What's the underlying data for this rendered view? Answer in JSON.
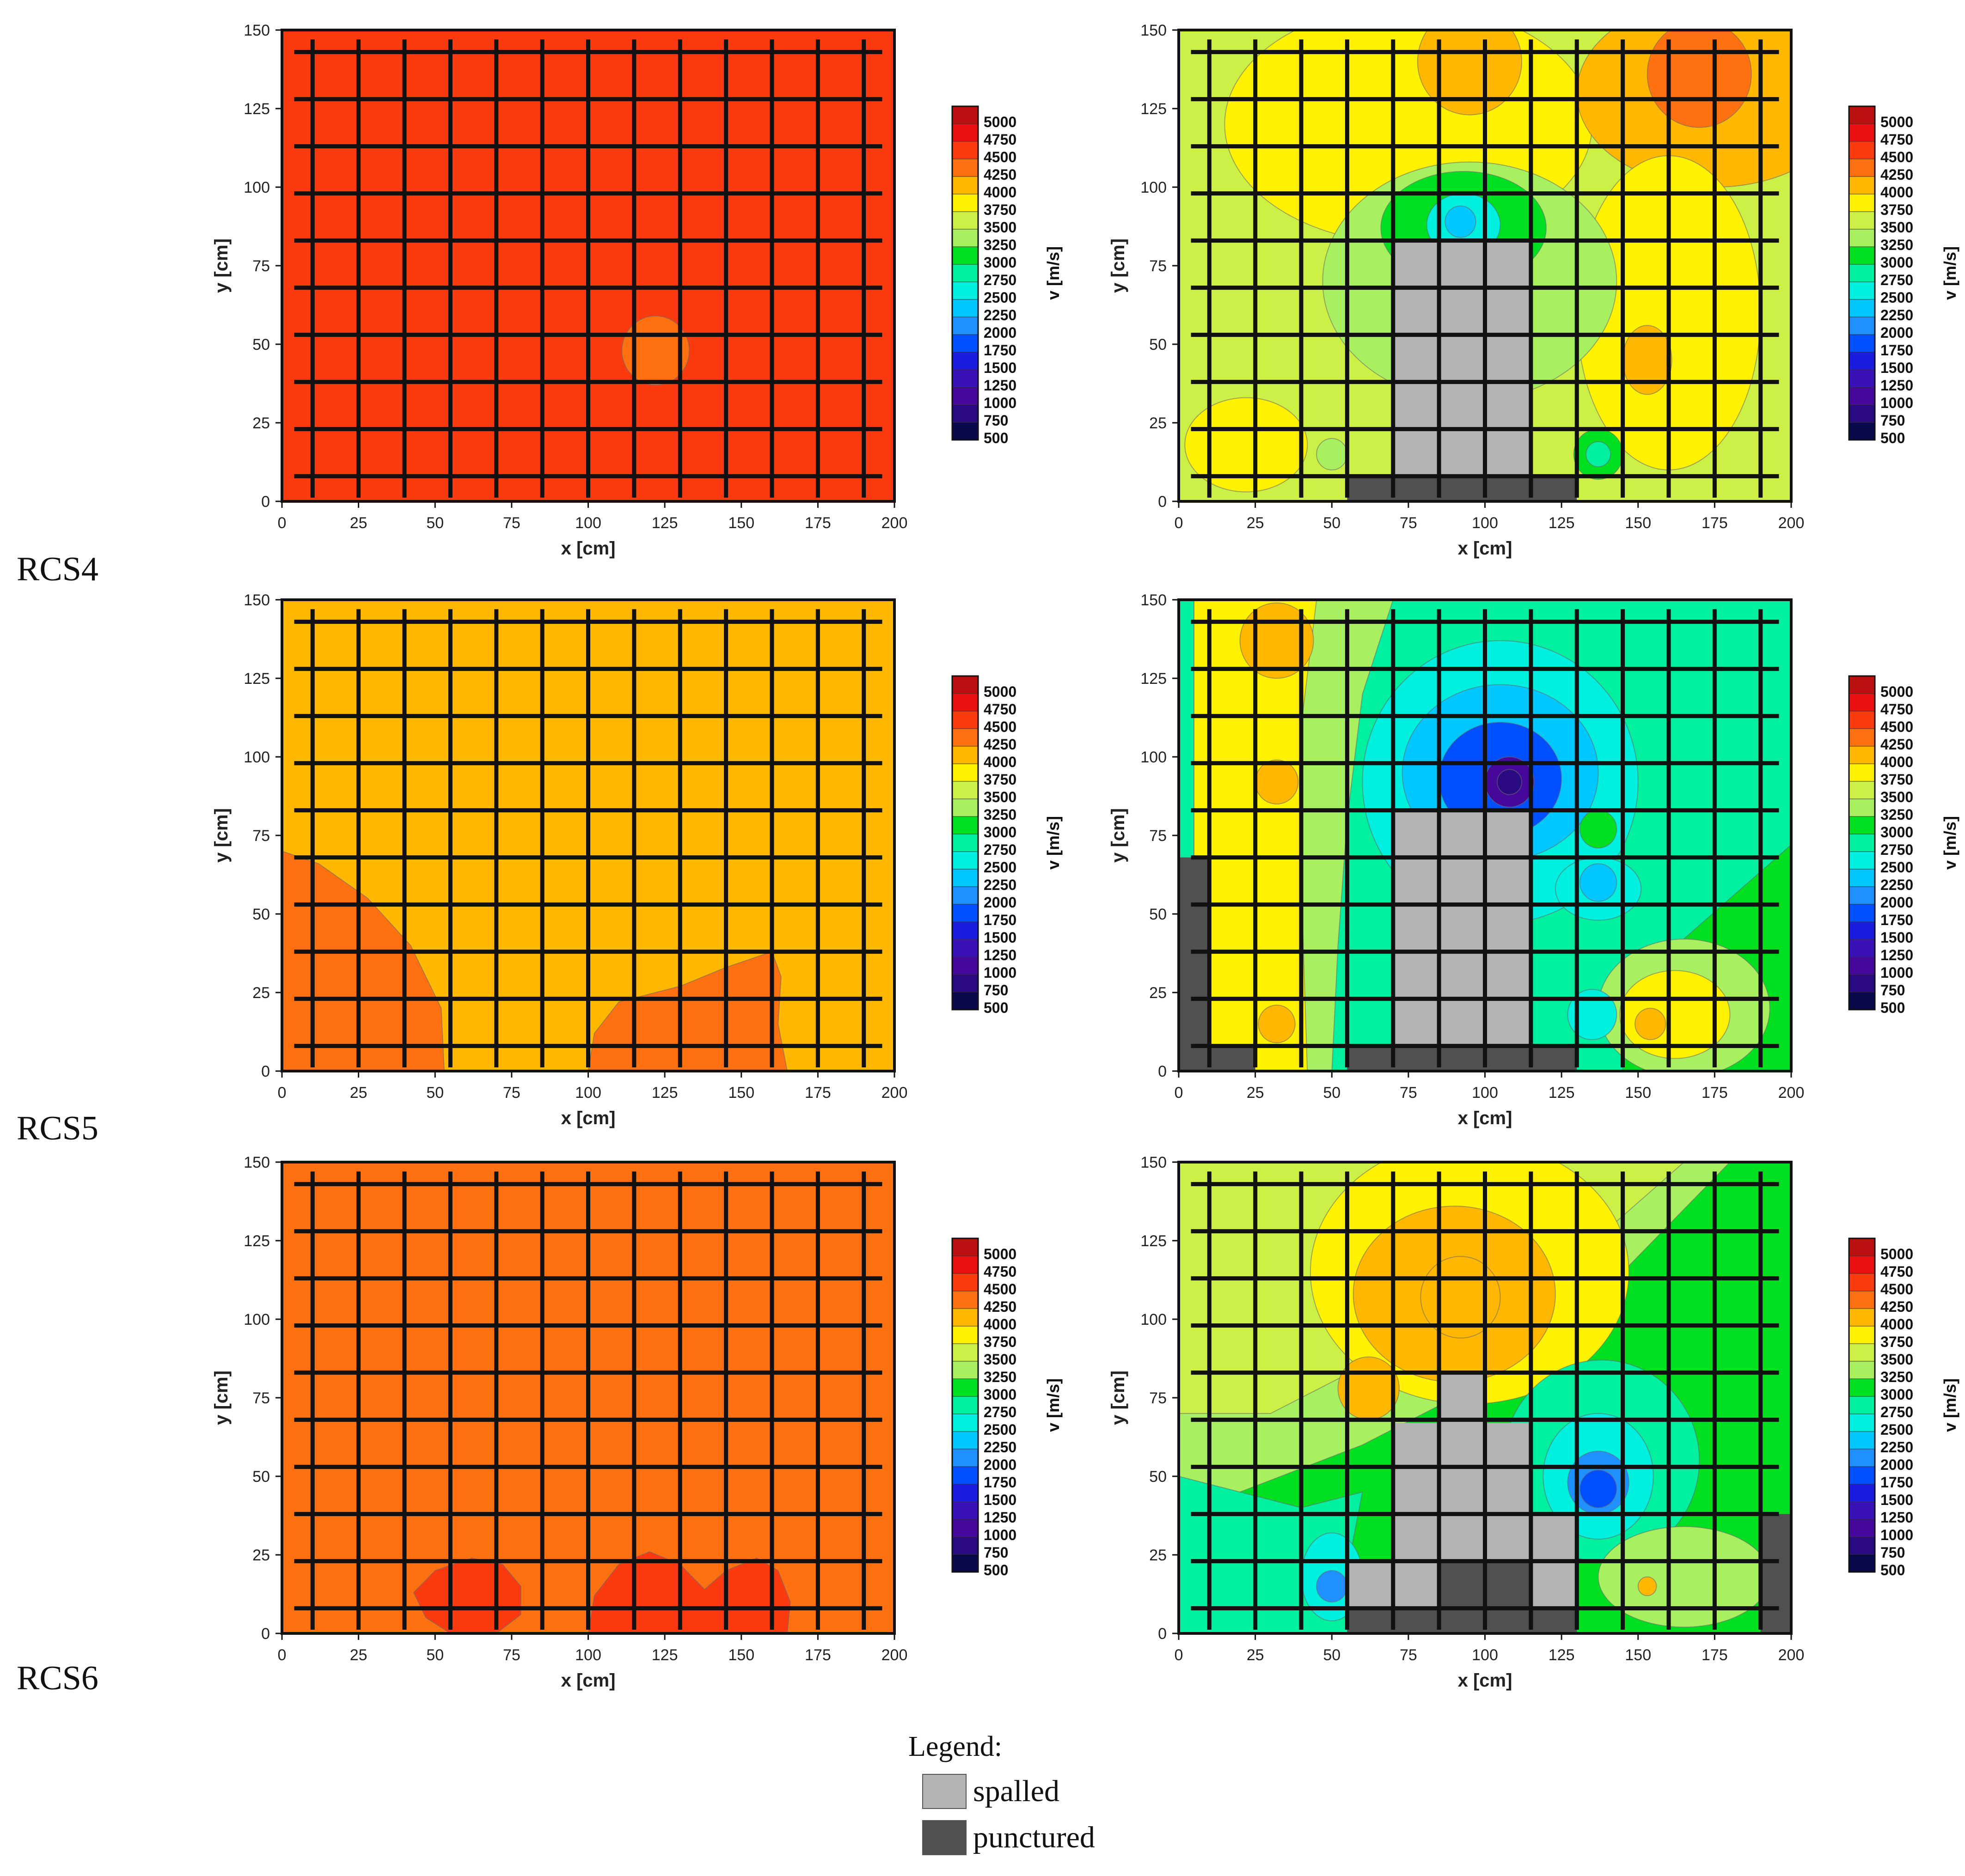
{
  "row_labels": [
    "RCS4",
    "RCS5",
    "RCS6"
  ],
  "legend": {
    "title": "Legend:",
    "items": [
      {
        "label": "spalled",
        "color": "#b4b4b4"
      },
      {
        "label": "punctured",
        "color": "#505050"
      }
    ]
  },
  "colors": {
    "spalled": "#b4b4b4",
    "punctured": "#505050",
    "grid": "#111111"
  },
  "chart_data": [
    {
      "type": "heatmap",
      "specimen": "RCS4",
      "state": "before",
      "xlabel": "x [cm]",
      "ylabel": "y [cm]",
      "xlim": [
        0,
        200
      ],
      "ylim": [
        0,
        150
      ],
      "xticks": [
        "0",
        "25",
        "50",
        "75",
        "100",
        "125",
        "150",
        "175",
        "200"
      ],
      "yticks": [
        "0",
        "25",
        "50",
        "75",
        "100",
        "125",
        "150"
      ],
      "colorbar_label": "v [m/s]",
      "background_velocity": 4600,
      "features": [
        {
          "shape": "circle",
          "cx": 122,
          "cy": 48,
          "r": 11,
          "v": 4400
        }
      ],
      "spalled": [],
      "punctured": []
    },
    {
      "type": "heatmap",
      "specimen": "RCS4",
      "state": "after",
      "xlabel": "x [cm]",
      "ylabel": "y [cm]",
      "xlim": [
        0,
        200
      ],
      "ylim": [
        0,
        150
      ],
      "xticks": [
        "0",
        "25",
        "50",
        "75",
        "100",
        "125",
        "150",
        "175",
        "200"
      ],
      "yticks": [
        "0",
        "25",
        "50",
        "75",
        "100",
        "125",
        "150"
      ],
      "colorbar_label": "v [m/s]",
      "background_velocity": 3600,
      "features": [
        {
          "shape": "ellipse",
          "cx": 75,
          "cy": 120,
          "rx": 60,
          "ry": 38,
          "v": 3900
        },
        {
          "shape": "ellipse",
          "cx": 175,
          "cy": 130,
          "rx": 45,
          "ry": 30,
          "v": 4000
        },
        {
          "shape": "circle",
          "cx": 170,
          "cy": 136,
          "r": 17,
          "v": 4300
        },
        {
          "shape": "circle",
          "cx": 95,
          "cy": 140,
          "r": 17,
          "v": 4100
        },
        {
          "shape": "ellipse",
          "cx": 160,
          "cy": 60,
          "rx": 30,
          "ry": 50,
          "v": 3850
        },
        {
          "shape": "ellipse",
          "cx": 153,
          "cy": 45,
          "rx": 8,
          "ry": 11,
          "v": 4050
        },
        {
          "shape": "ellipse",
          "cx": 22,
          "cy": 18,
          "rx": 20,
          "ry": 15,
          "v": 3900
        },
        {
          "shape": "ellipse",
          "cx": 95,
          "cy": 70,
          "rx": 48,
          "ry": 38,
          "v": 3300
        },
        {
          "shape": "ellipse",
          "cx": 93,
          "cy": 87,
          "rx": 27,
          "ry": 18,
          "v": 3100
        },
        {
          "shape": "ellipse",
          "cx": 93,
          "cy": 88,
          "rx": 12,
          "ry": 10,
          "v": 2700
        },
        {
          "shape": "circle",
          "cx": 92,
          "cy": 89,
          "r": 5,
          "v": 2400
        },
        {
          "shape": "circle",
          "cx": 50,
          "cy": 15,
          "r": 5,
          "v": 3350
        },
        {
          "shape": "circle",
          "cx": 137,
          "cy": 15,
          "r": 8,
          "v": 3050
        },
        {
          "shape": "circle",
          "cx": 137,
          "cy": 15,
          "r": 4,
          "v": 2800
        }
      ],
      "spalled": [
        [
          [
            70,
            8
          ],
          [
            115,
            8
          ],
          [
            115,
            83
          ],
          [
            70,
            83
          ]
        ]
      ],
      "punctured": [
        [
          [
            55,
            0
          ],
          [
            130,
            0
          ],
          [
            130,
            8
          ],
          [
            55,
            8
          ]
        ]
      ]
    },
    {
      "type": "heatmap",
      "specimen": "RCS5",
      "state": "before",
      "xlabel": "x [cm]",
      "ylabel": "y [cm]",
      "xlim": [
        0,
        200
      ],
      "ylim": [
        0,
        150
      ],
      "xticks": [
        "0",
        "25",
        "50",
        "75",
        "100",
        "125",
        "150",
        "175",
        "200"
      ],
      "yticks": [
        "0",
        "25",
        "50",
        "75",
        "100",
        "125",
        "150"
      ],
      "colorbar_label": "v [m/s]",
      "background_velocity": 4100,
      "features": [
        {
          "shape": "polygon",
          "points": [
            [
              0,
              0
            ],
            [
              0,
              70
            ],
            [
              12,
              66
            ],
            [
              28,
              55
            ],
            [
              42,
              40
            ],
            [
              52,
              20
            ],
            [
              53,
              0
            ]
          ],
          "v": 4350
        },
        {
          "shape": "polygon",
          "points": [
            [
              100,
              0
            ],
            [
              102,
              12
            ],
            [
              110,
              22
            ],
            [
              130,
              27
            ],
            [
              145,
              33
            ],
            [
              160,
              38
            ],
            [
              163,
              30
            ],
            [
              162,
              15
            ],
            [
              165,
              0
            ]
          ],
          "v": 4350
        }
      ],
      "spalled": [],
      "punctured": []
    },
    {
      "type": "heatmap",
      "specimen": "RCS5",
      "state": "after",
      "xlabel": "x [cm]",
      "ylabel": "y [cm]",
      "xlim": [
        0,
        200
      ],
      "ylim": [
        0,
        150
      ],
      "xticks": [
        "0",
        "25",
        "50",
        "75",
        "100",
        "125",
        "150",
        "175",
        "200"
      ],
      "yticks": [
        "0",
        "25",
        "50",
        "75",
        "100",
        "125",
        "150"
      ],
      "colorbar_label": "v [m/s]",
      "background_velocity": 2900,
      "features": [
        {
          "shape": "polygon",
          "points": [
            [
              5,
              0
            ],
            [
              5,
              150
            ],
            [
              70,
              150
            ],
            [
              60,
              120
            ],
            [
              55,
              80
            ],
            [
              52,
              40
            ],
            [
              50,
              0
            ]
          ],
          "v": 3450
        },
        {
          "shape": "polygon",
          "points": [
            [
              5,
              0
            ],
            [
              5,
              150
            ],
            [
              45,
              150
            ],
            [
              40,
              110
            ],
            [
              40,
              60
            ],
            [
              42,
              0
            ]
          ],
          "v": 3900
        },
        {
          "shape": "circle",
          "cx": 32,
          "cy": 137,
          "r": 12,
          "v": 4150
        },
        {
          "shape": "circle",
          "cx": 32,
          "cy": 92,
          "r": 7,
          "v": 4100
        },
        {
          "shape": "circle",
          "cx": 32,
          "cy": 15,
          "r": 6,
          "v": 4100
        },
        {
          "shape": "polygon",
          "points": [
            [
              200,
              0
            ],
            [
              200,
              72
            ],
            [
              145,
              25
            ],
            [
              145,
              0
            ]
          ],
          "v": 3150
        },
        {
          "shape": "ellipse",
          "cx": 165,
          "cy": 20,
          "rx": 28,
          "ry": 22,
          "v": 3450
        },
        {
          "shape": "ellipse",
          "cx": 162,
          "cy": 18,
          "rx": 18,
          "ry": 14,
          "v": 3800
        },
        {
          "shape": "circle",
          "cx": 154,
          "cy": 15,
          "r": 5,
          "v": 4100
        },
        {
          "shape": "ellipse",
          "cx": 105,
          "cy": 92,
          "rx": 45,
          "ry": 45,
          "v": 2650
        },
        {
          "shape": "ellipse",
          "cx": 105,
          "cy": 95,
          "rx": 32,
          "ry": 28,
          "v": 2300
        },
        {
          "shape": "ellipse",
          "cx": 105,
          "cy": 93,
          "rx": 20,
          "ry": 18,
          "v": 1950
        },
        {
          "shape": "circle",
          "cx": 108,
          "cy": 92,
          "r": 8,
          "v": 1200
        },
        {
          "shape": "circle",
          "cx": 108,
          "cy": 92,
          "r": 4,
          "v": 900
        },
        {
          "shape": "circle",
          "cx": 137,
          "cy": 77,
          "r": 6,
          "v": 3100
        },
        {
          "shape": "ellipse",
          "cx": 137,
          "cy": 58,
          "rx": 14,
          "ry": 10,
          "v": 2600
        },
        {
          "shape": "circle",
          "cx": 137,
          "cy": 60,
          "r": 6,
          "v": 2300
        },
        {
          "shape": "circle",
          "cx": 135,
          "cy": 18,
          "r": 8,
          "v": 2600
        }
      ],
      "spalled": [
        [
          [
            70,
            8
          ],
          [
            115,
            8
          ],
          [
            115,
            83
          ],
          [
            70,
            83
          ]
        ]
      ],
      "punctured": [
        [
          [
            0,
            0
          ],
          [
            25,
            0
          ],
          [
            25,
            8
          ],
          [
            10,
            8
          ],
          [
            10,
            68
          ],
          [
            0,
            68
          ]
        ],
        [
          [
            55,
            0
          ],
          [
            130,
            0
          ],
          [
            130,
            8
          ],
          [
            55,
            8
          ]
        ]
      ]
    },
    {
      "type": "heatmap",
      "specimen": "RCS6",
      "state": "before",
      "xlabel": "x [cm]",
      "ylabel": "y [cm]",
      "xlim": [
        0,
        200
      ],
      "ylim": [
        0,
        150
      ],
      "xticks": [
        "0",
        "25",
        "50",
        "75",
        "100",
        "125",
        "150",
        "175",
        "200"
      ],
      "yticks": [
        "0",
        "25",
        "50",
        "75",
        "100",
        "125",
        "150"
      ],
      "colorbar_label": "v [m/s]",
      "background_velocity": 4350,
      "features": [
        {
          "shape": "polygon",
          "points": [
            [
              43,
              13
            ],
            [
              50,
              20
            ],
            [
              62,
              24
            ],
            [
              72,
              22
            ],
            [
              78,
              15
            ],
            [
              78,
              6
            ],
            [
              70,
              0
            ],
            [
              55,
              0
            ],
            [
              47,
              5
            ]
          ],
          "v": 4600
        },
        {
          "shape": "polygon",
          "points": [
            [
              100,
              0
            ],
            [
              102,
              12
            ],
            [
              110,
              22
            ],
            [
              120,
              26
            ],
            [
              130,
              22
            ],
            [
              138,
              14
            ],
            [
              145,
              20
            ],
            [
              155,
              24
            ],
            [
              162,
              20
            ],
            [
              166,
              10
            ],
            [
              165,
              0
            ]
          ],
          "v": 4600
        }
      ],
      "spalled": [],
      "punctured": []
    },
    {
      "type": "heatmap",
      "specimen": "RCS6",
      "state": "after",
      "xlabel": "x [cm]",
      "ylabel": "y [cm]",
      "xlim": [
        0,
        200
      ],
      "ylim": [
        0,
        150
      ],
      "xticks": [
        "0",
        "25",
        "50",
        "75",
        "100",
        "125",
        "150",
        "175",
        "200"
      ],
      "yticks": [
        "0",
        "25",
        "50",
        "75",
        "100",
        "125",
        "150"
      ],
      "colorbar_label": "v [m/s]",
      "background_velocity": 3150,
      "features": [
        {
          "shape": "polygon",
          "points": [
            [
              0,
              150
            ],
            [
              180,
              150
            ],
            [
              140,
              110
            ],
            [
              120,
              90
            ],
            [
              60,
              60
            ],
            [
              20,
              45
            ],
            [
              0,
              40
            ]
          ],
          "v": 3400
        },
        {
          "shape": "polygon",
          "points": [
            [
              0,
              150
            ],
            [
              165,
              150
            ],
            [
              130,
              120
            ],
            [
              110,
              95
            ],
            [
              60,
              85
            ],
            [
              30,
              70
            ],
            [
              0,
              70
            ]
          ],
          "v": 3600
        },
        {
          "shape": "ellipse",
          "cx": 95,
          "cy": 115,
          "rx": 52,
          "ry": 42,
          "v": 3850
        },
        {
          "shape": "ellipse",
          "cx": 90,
          "cy": 108,
          "rx": 33,
          "ry": 28,
          "v": 4000
        },
        {
          "shape": "circle",
          "cx": 92,
          "cy": 107,
          "r": 13,
          "v": 4150
        },
        {
          "shape": "circle",
          "cx": 62,
          "cy": 78,
          "r": 10,
          "v": 4100
        },
        {
          "shape": "polygon",
          "points": [
            [
              0,
              0
            ],
            [
              0,
              50
            ],
            [
              40,
              40
            ],
            [
              60,
              45
            ],
            [
              55,
              20
            ],
            [
              60,
              0
            ]
          ],
          "v": 2850
        },
        {
          "shape": "ellipse",
          "cx": 50,
          "cy": 18,
          "rx": 10,
          "ry": 14,
          "v": 2500
        },
        {
          "shape": "circle",
          "cx": 50,
          "cy": 15,
          "r": 5,
          "v": 2000
        },
        {
          "shape": "ellipse",
          "cx": 138,
          "cy": 55,
          "rx": 32,
          "ry": 32,
          "v": 2850
        },
        {
          "shape": "ellipse",
          "cx": 137,
          "cy": 50,
          "rx": 18,
          "ry": 20,
          "v": 2500
        },
        {
          "shape": "circle",
          "cx": 137,
          "cy": 48,
          "r": 10,
          "v": 2200
        },
        {
          "shape": "circle",
          "cx": 137,
          "cy": 46,
          "r": 6,
          "v": 1900
        },
        {
          "shape": "ellipse",
          "cx": 165,
          "cy": 18,
          "rx": 28,
          "ry": 16,
          "v": 3450
        },
        {
          "shape": "circle",
          "cx": 153,
          "cy": 15,
          "r": 3,
          "v": 4050
        }
      ],
      "spalled": [
        [
          [
            55,
            8
          ],
          [
            130,
            8
          ],
          [
            130,
            38
          ],
          [
            115,
            38
          ],
          [
            115,
            67
          ],
          [
            100,
            67
          ],
          [
            100,
            83
          ],
          [
            85,
            83
          ],
          [
            85,
            67
          ],
          [
            70,
            67
          ],
          [
            70,
            23
          ],
          [
            55,
            23
          ]
        ]
      ],
      "punctured": [
        [
          [
            55,
            0
          ],
          [
            130,
            0
          ],
          [
            130,
            8
          ],
          [
            115,
            8
          ],
          [
            115,
            23
          ],
          [
            85,
            23
          ],
          [
            85,
            8
          ],
          [
            55,
            8
          ]
        ],
        [
          [
            190,
            0
          ],
          [
            200,
            0
          ],
          [
            200,
            38
          ],
          [
            190,
            38
          ]
        ]
      ]
    }
  ],
  "colorbar": {
    "label": "v [m/s]",
    "ticks": [
      "5000",
      "4750",
      "4500",
      "4250",
      "4000",
      "3750",
      "3500",
      "3250",
      "3000",
      "2750",
      "2500",
      "2250",
      "2000",
      "1750",
      "1500",
      "1250",
      "1000",
      "750",
      "500"
    ],
    "colors": [
      "#bb1010",
      "#e81010",
      "#fb3a10",
      "#ff7010",
      "#ffb700",
      "#fff200",
      "#cdf046",
      "#a8f060",
      "#00e020",
      "#00f0a0",
      "#00f0e0",
      "#00c8ff",
      "#1e90ff",
      "#0050ff",
      "#1c1ce0",
      "#3a10b8",
      "#46089a",
      "#2a0a80",
      "#08084a"
    ]
  }
}
